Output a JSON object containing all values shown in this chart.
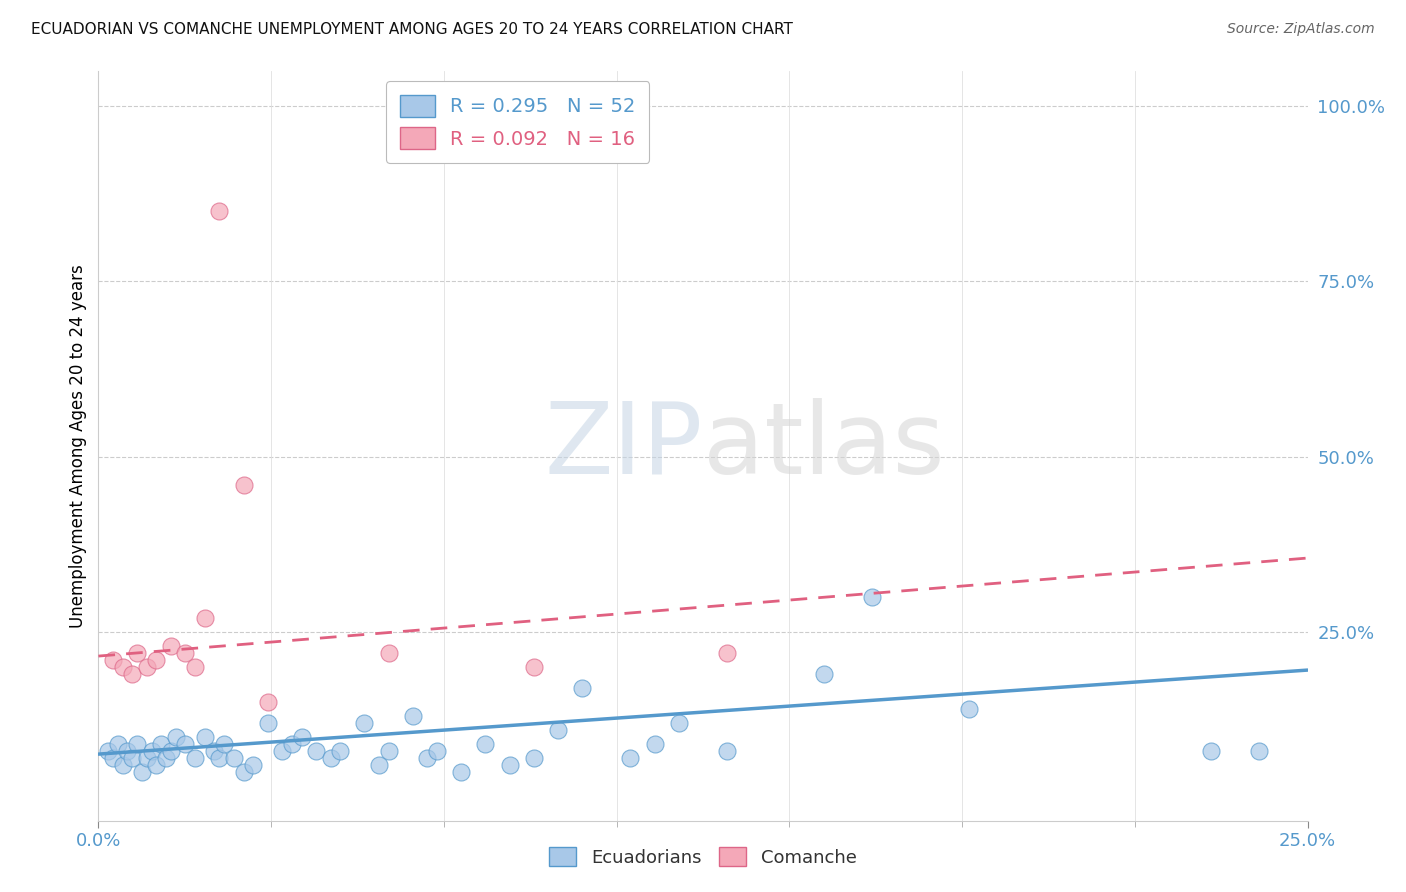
{
  "title": "ECUADORIAN VS COMANCHE UNEMPLOYMENT AMONG AGES 20 TO 24 YEARS CORRELATION CHART",
  "source": "Source: ZipAtlas.com",
  "ylabel": "Unemployment Among Ages 20 to 24 years",
  "right_yticks": [
    "100.0%",
    "75.0%",
    "50.0%",
    "25.0%"
  ],
  "right_ytick_vals": [
    1.0,
    0.75,
    0.5,
    0.25
  ],
  "xmin": 0.0,
  "xmax": 0.25,
  "ymin": -0.02,
  "ymax": 1.05,
  "blue_color": "#a8c8e8",
  "blue_edge": "#5599cc",
  "pink_color": "#f4a8b8",
  "pink_edge": "#dd6688",
  "blue_line_color": "#5599cc",
  "pink_line_color": "#e06080",
  "ecuadorians_x": [
    0.002,
    0.003,
    0.004,
    0.005,
    0.006,
    0.007,
    0.008,
    0.009,
    0.01,
    0.011,
    0.012,
    0.013,
    0.014,
    0.015,
    0.016,
    0.018,
    0.02,
    0.022,
    0.024,
    0.025,
    0.026,
    0.028,
    0.03,
    0.032,
    0.035,
    0.038,
    0.04,
    0.042,
    0.045,
    0.048,
    0.05,
    0.055,
    0.058,
    0.06,
    0.065,
    0.068,
    0.07,
    0.075,
    0.08,
    0.085,
    0.09,
    0.095,
    0.1,
    0.11,
    0.115,
    0.12,
    0.13,
    0.15,
    0.16,
    0.18,
    0.23,
    0.24
  ],
  "ecuadorians_y": [
    0.08,
    0.07,
    0.09,
    0.06,
    0.08,
    0.07,
    0.09,
    0.05,
    0.07,
    0.08,
    0.06,
    0.09,
    0.07,
    0.08,
    0.1,
    0.09,
    0.07,
    0.1,
    0.08,
    0.07,
    0.09,
    0.07,
    0.05,
    0.06,
    0.12,
    0.08,
    0.09,
    0.1,
    0.08,
    0.07,
    0.08,
    0.12,
    0.06,
    0.08,
    0.13,
    0.07,
    0.08,
    0.05,
    0.09,
    0.06,
    0.07,
    0.11,
    0.17,
    0.07,
    0.09,
    0.12,
    0.08,
    0.19,
    0.3,
    0.14,
    0.08,
    0.08
  ],
  "comanche_x": [
    0.003,
    0.005,
    0.007,
    0.008,
    0.01,
    0.012,
    0.015,
    0.018,
    0.02,
    0.022,
    0.025,
    0.03,
    0.035,
    0.06,
    0.09,
    0.13
  ],
  "comanche_y": [
    0.21,
    0.2,
    0.19,
    0.22,
    0.2,
    0.21,
    0.23,
    0.22,
    0.2,
    0.27,
    0.85,
    0.46,
    0.15,
    0.22,
    0.2,
    0.22
  ],
  "blue_trend_x": [
    0.0,
    0.25
  ],
  "blue_trend_y": [
    0.075,
    0.195
  ],
  "pink_trend_x": [
    0.0,
    0.25
  ],
  "pink_trend_y": [
    0.215,
    0.355
  ],
  "background_color": "#ffffff"
}
